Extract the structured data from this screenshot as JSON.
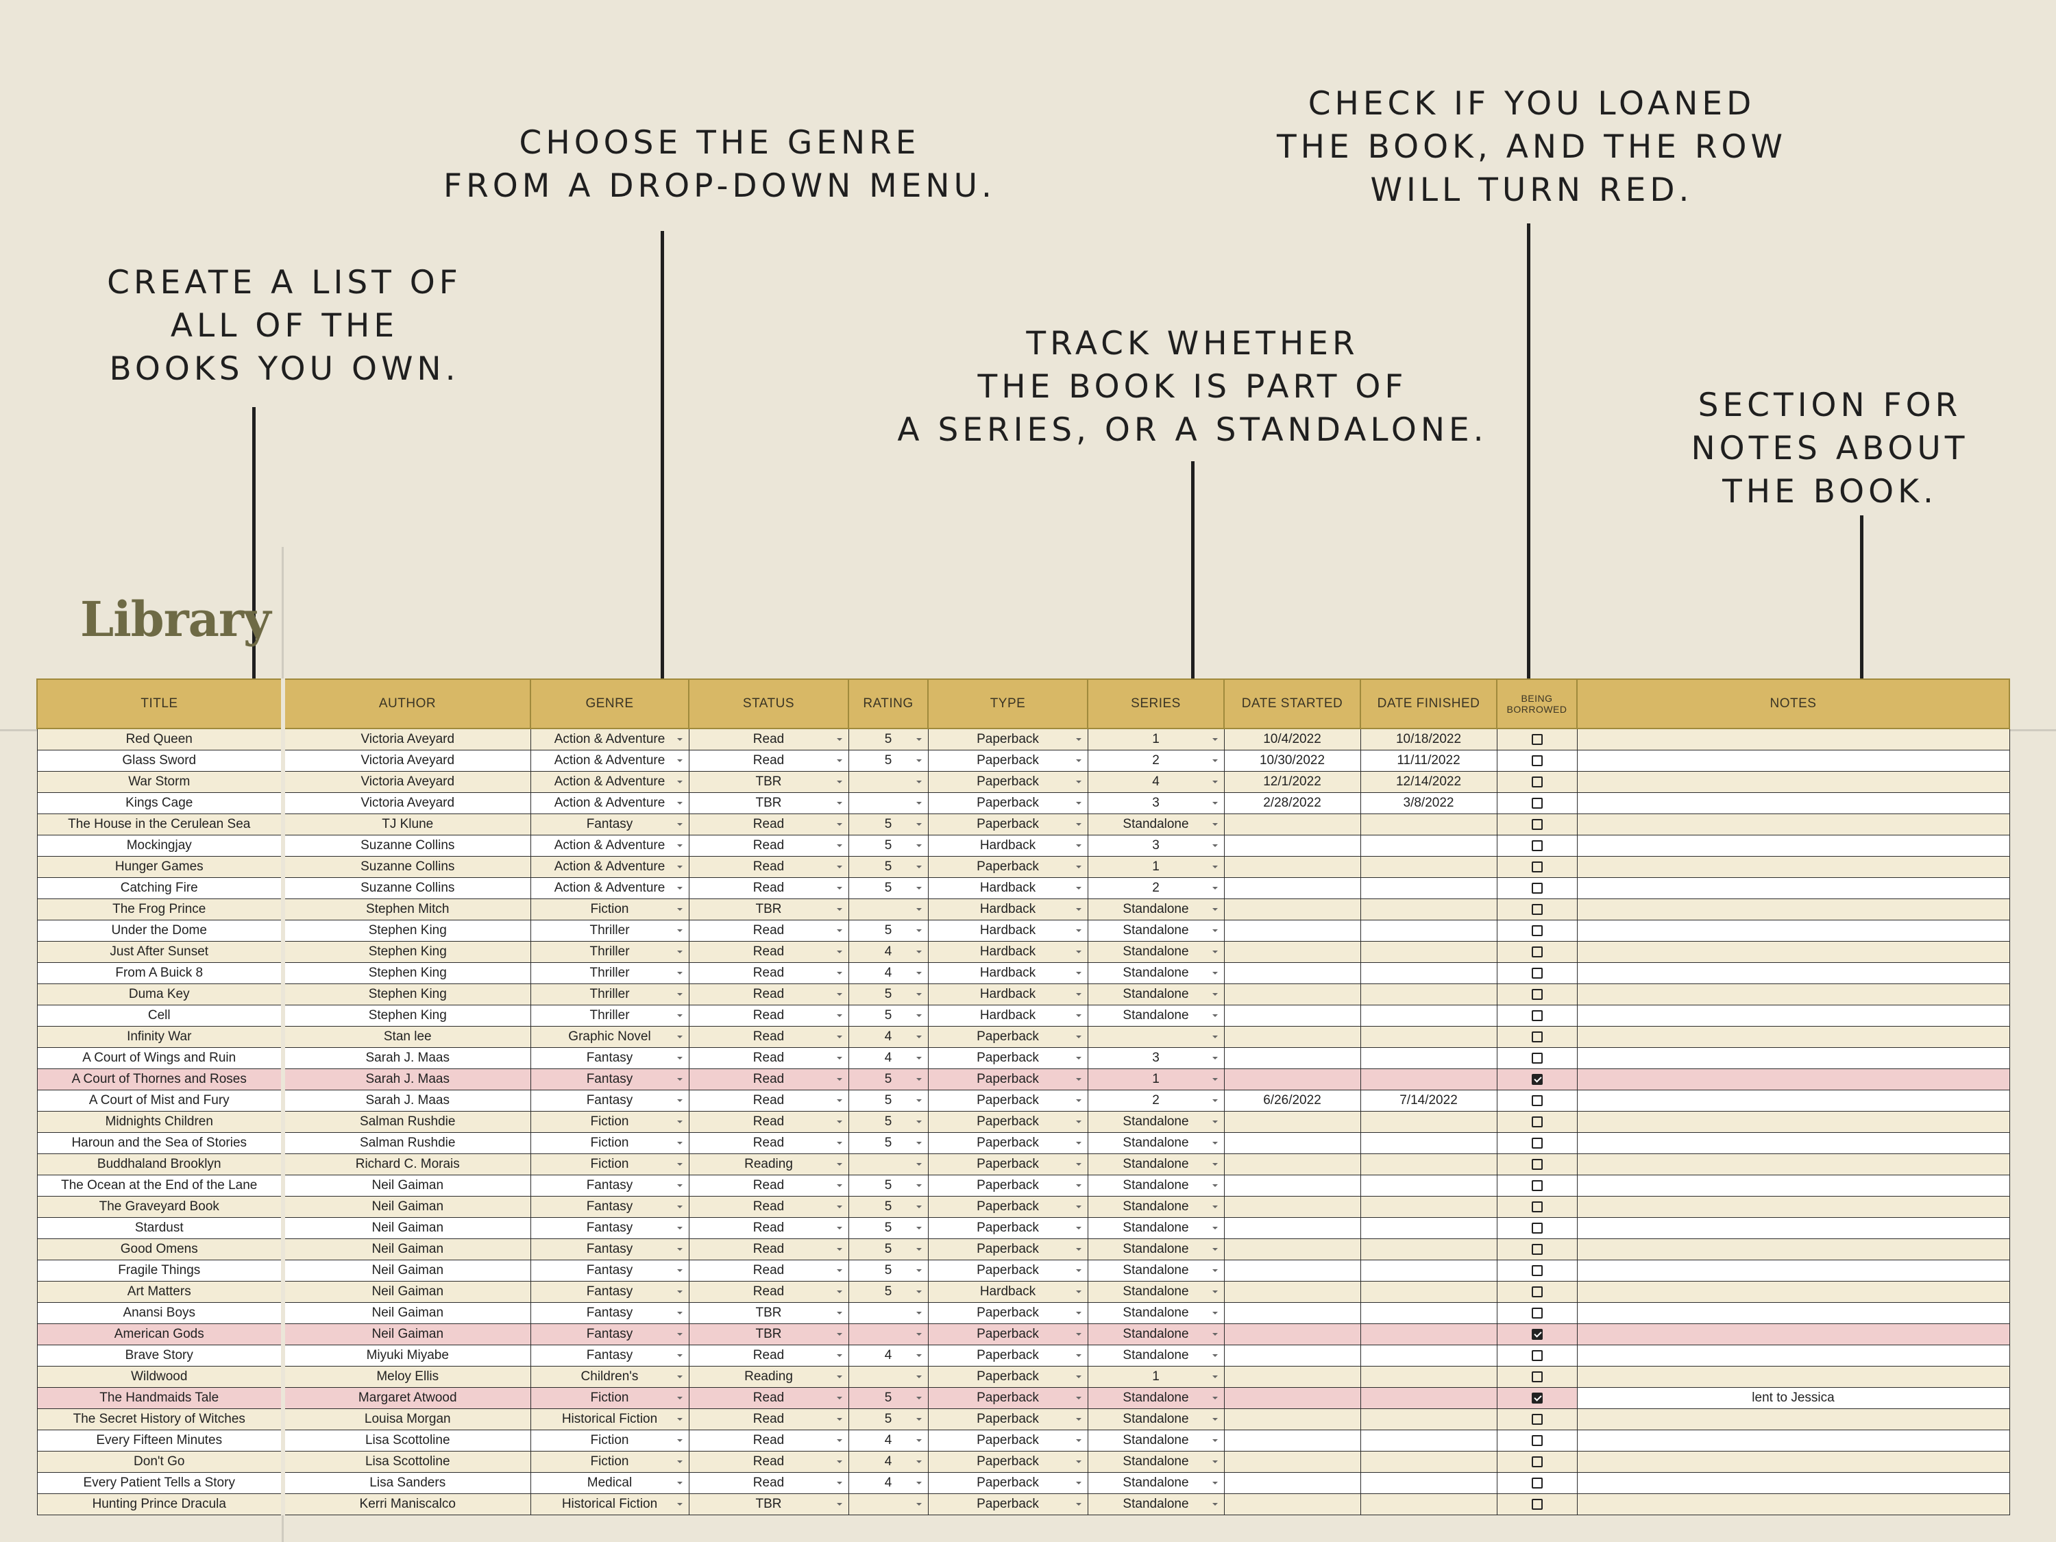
{
  "callouts": {
    "own": [
      "CREATE A LIST OF",
      "ALL OF THE",
      "BOOKS YOU OWN."
    ],
    "genre": [
      "CHOOSE THE GENRE",
      "FROM A DROP-DOWN MENU."
    ],
    "series": [
      "TRACK WHETHER",
      "THE BOOK IS PART OF",
      "A SERIES, OR A STANDALONE."
    ],
    "loaned": [
      "CHECK IF YOU LOANED",
      "THE BOOK, AND THE ROW",
      "WILL TURN RED."
    ],
    "notes": [
      "SECTION FOR",
      "NOTES ABOUT",
      "THE BOOK."
    ]
  },
  "sheet_title": "Library",
  "columns": {
    "title": "TITLE",
    "author": "AUTHOR",
    "genre": "GENRE",
    "status": "STATUS",
    "rating": "RATING",
    "type": "TYPE",
    "series": "SERIES",
    "date_started": "DATE STARTED",
    "date_finished": "DATE FINISHED",
    "borrowed_1": "BEING",
    "borrowed_2": "BORROWED",
    "notes": "NOTES"
  },
  "books": [
    {
      "title": "Red Queen",
      "author": "Victoria Aveyard",
      "genre": "Action & Adventure",
      "status": "Read",
      "rating": "5",
      "type": "Paperback",
      "series": "1",
      "started": "10/4/2022",
      "finished": "10/18/2022",
      "borrowed": false,
      "notes": ""
    },
    {
      "title": "Glass Sword",
      "author": "Victoria Aveyard",
      "genre": "Action & Adventure",
      "status": "Read",
      "rating": "5",
      "type": "Paperback",
      "series": "2",
      "started": "10/30/2022",
      "finished": "11/11/2022",
      "borrowed": false,
      "notes": ""
    },
    {
      "title": "War Storm",
      "author": "Victoria Aveyard",
      "genre": "Action & Adventure",
      "status": "TBR",
      "rating": "",
      "type": "Paperback",
      "series": "4",
      "started": "12/1/2022",
      "finished": "12/14/2022",
      "borrowed": false,
      "notes": ""
    },
    {
      "title": "Kings Cage",
      "author": "Victoria Aveyard",
      "genre": "Action & Adventure",
      "status": "TBR",
      "rating": "",
      "type": "Paperback",
      "series": "3",
      "started": "2/28/2022",
      "finished": "3/8/2022",
      "borrowed": false,
      "notes": ""
    },
    {
      "title": "The House in the Cerulean Sea",
      "author": "TJ Klune",
      "genre": "Fantasy",
      "status": "Read",
      "rating": "5",
      "type": "Paperback",
      "series": "Standalone",
      "started": "",
      "finished": "",
      "borrowed": false,
      "notes": ""
    },
    {
      "title": "Mockingjay",
      "author": "Suzanne Collins",
      "genre": "Action & Adventure",
      "status": "Read",
      "rating": "5",
      "type": "Hardback",
      "series": "3",
      "started": "",
      "finished": "",
      "borrowed": false,
      "notes": ""
    },
    {
      "title": "Hunger Games",
      "author": "Suzanne Collins",
      "genre": "Action & Adventure",
      "status": "Read",
      "rating": "5",
      "type": "Paperback",
      "series": "1",
      "started": "",
      "finished": "",
      "borrowed": false,
      "notes": ""
    },
    {
      "title": "Catching Fire",
      "author": "Suzanne Collins",
      "genre": "Action & Adventure",
      "status": "Read",
      "rating": "5",
      "type": "Hardback",
      "series": "2",
      "started": "",
      "finished": "",
      "borrowed": false,
      "notes": ""
    },
    {
      "title": "The Frog Prince",
      "author": "Stephen Mitch",
      "genre": "Fiction",
      "status": "TBR",
      "rating": "",
      "type": "Hardback",
      "series": "Standalone",
      "started": "",
      "finished": "",
      "borrowed": false,
      "notes": ""
    },
    {
      "title": "Under the Dome",
      "author": "Stephen King",
      "genre": "Thriller",
      "status": "Read",
      "rating": "5",
      "type": "Hardback",
      "series": "Standalone",
      "started": "",
      "finished": "",
      "borrowed": false,
      "notes": ""
    },
    {
      "title": "Just After Sunset",
      "author": "Stephen King",
      "genre": "Thriller",
      "status": "Read",
      "rating": "4",
      "type": "Hardback",
      "series": "Standalone",
      "started": "",
      "finished": "",
      "borrowed": false,
      "notes": ""
    },
    {
      "title": "From A Buick 8",
      "author": "Stephen King",
      "genre": "Thriller",
      "status": "Read",
      "rating": "4",
      "type": "Hardback",
      "series": "Standalone",
      "started": "",
      "finished": "",
      "borrowed": false,
      "notes": ""
    },
    {
      "title": "Duma Key",
      "author": "Stephen King",
      "genre": "Thriller",
      "status": "Read",
      "rating": "5",
      "type": "Hardback",
      "series": "Standalone",
      "started": "",
      "finished": "",
      "borrowed": false,
      "notes": ""
    },
    {
      "title": "Cell",
      "author": "Stephen King",
      "genre": "Thriller",
      "status": "Read",
      "rating": "5",
      "type": "Hardback",
      "series": "Standalone",
      "started": "",
      "finished": "",
      "borrowed": false,
      "notes": ""
    },
    {
      "title": "Infinity War",
      "author": "Stan lee",
      "genre": "Graphic Novel",
      "status": "Read",
      "rating": "4",
      "type": "Paperback",
      "series": "",
      "started": "",
      "finished": "",
      "borrowed": false,
      "notes": ""
    },
    {
      "title": "A Court of Wings and Ruin",
      "author": "Sarah J. Maas",
      "genre": "Fantasy",
      "status": "Read",
      "rating": "4",
      "type": "Paperback",
      "series": "3",
      "started": "",
      "finished": "",
      "borrowed": false,
      "notes": ""
    },
    {
      "title": "A Court of Thornes and Roses",
      "author": "Sarah J. Maas",
      "genre": "Fantasy",
      "status": "Read",
      "rating": "5",
      "type": "Paperback",
      "series": "1",
      "started": "",
      "finished": "",
      "borrowed": true,
      "notes": ""
    },
    {
      "title": "A Court of Mist and Fury",
      "author": "Sarah J. Maas",
      "genre": "Fantasy",
      "status": "Read",
      "rating": "5",
      "type": "Paperback",
      "series": "2",
      "started": "6/26/2022",
      "finished": "7/14/2022",
      "borrowed": false,
      "notes": ""
    },
    {
      "title": "Midnights Children",
      "author": "Salman Rushdie",
      "genre": "Fiction",
      "status": "Read",
      "rating": "5",
      "type": "Paperback",
      "series": "Standalone",
      "started": "",
      "finished": "",
      "borrowed": false,
      "notes": ""
    },
    {
      "title": "Haroun and the Sea of Stories",
      "author": "Salman Rushdie",
      "genre": "Fiction",
      "status": "Read",
      "rating": "5",
      "type": "Paperback",
      "series": "Standalone",
      "started": "",
      "finished": "",
      "borrowed": false,
      "notes": ""
    },
    {
      "title": "Buddhaland Brooklyn",
      "author": "Richard C. Morais",
      "genre": "Fiction",
      "status": "Reading",
      "rating": "",
      "type": "Paperback",
      "series": "Standalone",
      "started": "",
      "finished": "",
      "borrowed": false,
      "notes": ""
    },
    {
      "title": "The Ocean at the End of the Lane",
      "author": "Neil Gaiman",
      "genre": "Fantasy",
      "status": "Read",
      "rating": "5",
      "type": "Paperback",
      "series": "Standalone",
      "started": "",
      "finished": "",
      "borrowed": false,
      "notes": ""
    },
    {
      "title": "The Graveyard Book",
      "author": "Neil Gaiman",
      "genre": "Fantasy",
      "status": "Read",
      "rating": "5",
      "type": "Paperback",
      "series": "Standalone",
      "started": "",
      "finished": "",
      "borrowed": false,
      "notes": ""
    },
    {
      "title": "Stardust",
      "author": "Neil Gaiman",
      "genre": "Fantasy",
      "status": "Read",
      "rating": "5",
      "type": "Paperback",
      "series": "Standalone",
      "started": "",
      "finished": "",
      "borrowed": false,
      "notes": ""
    },
    {
      "title": "Good Omens",
      "author": "Neil Gaiman",
      "genre": "Fantasy",
      "status": "Read",
      "rating": "5",
      "type": "Paperback",
      "series": "Standalone",
      "started": "",
      "finished": "",
      "borrowed": false,
      "notes": ""
    },
    {
      "title": "Fragile Things",
      "author": "Neil Gaiman",
      "genre": "Fantasy",
      "status": "Read",
      "rating": "5",
      "type": "Paperback",
      "series": "Standalone",
      "started": "",
      "finished": "",
      "borrowed": false,
      "notes": ""
    },
    {
      "title": "Art Matters",
      "author": "Neil Gaiman",
      "genre": "Fantasy",
      "status": "Read",
      "rating": "5",
      "type": "Hardback",
      "series": "Standalone",
      "started": "",
      "finished": "",
      "borrowed": false,
      "notes": ""
    },
    {
      "title": "Anansi Boys",
      "author": "Neil Gaiman",
      "genre": "Fantasy",
      "status": "TBR",
      "rating": "",
      "type": "Paperback",
      "series": "Standalone",
      "started": "",
      "finished": "",
      "borrowed": false,
      "notes": ""
    },
    {
      "title": "American Gods",
      "author": "Neil Gaiman",
      "genre": "Fantasy",
      "status": "TBR",
      "rating": "",
      "type": "Paperback",
      "series": "Standalone",
      "started": "",
      "finished": "",
      "borrowed": true,
      "notes": ""
    },
    {
      "title": "Brave Story",
      "author": "Miyuki Miyabe",
      "genre": "Fantasy",
      "status": "Read",
      "rating": "4",
      "type": "Paperback",
      "series": "Standalone",
      "started": "",
      "finished": "",
      "borrowed": false,
      "notes": ""
    },
    {
      "title": "Wildwood",
      "author": "Meloy Ellis",
      "genre": "Children's",
      "status": "Reading",
      "rating": "",
      "type": "Paperback",
      "series": "1",
      "started": "",
      "finished": "",
      "borrowed": false,
      "notes": ""
    },
    {
      "title": "The Handmaids Tale",
      "author": "Margaret Atwood",
      "genre": "Fiction",
      "status": "Read",
      "rating": "5",
      "type": "Paperback",
      "series": "Standalone",
      "started": "",
      "finished": "",
      "borrowed": true,
      "notes": "lent to Jessica"
    },
    {
      "title": "The Secret History of Witches",
      "author": "Louisa Morgan",
      "genre": "Historical Fiction",
      "status": "Read",
      "rating": "5",
      "type": "Paperback",
      "series": "Standalone",
      "started": "",
      "finished": "",
      "borrowed": false,
      "notes": ""
    },
    {
      "title": "Every Fifteen Minutes",
      "author": "Lisa Scottoline",
      "genre": "Fiction",
      "status": "Read",
      "rating": "4",
      "type": "Paperback",
      "series": "Standalone",
      "started": "",
      "finished": "",
      "borrowed": false,
      "notes": ""
    },
    {
      "title": "Don't Go",
      "author": "Lisa Scottoline",
      "genre": "Fiction",
      "status": "Read",
      "rating": "4",
      "type": "Paperback",
      "series": "Standalone",
      "started": "",
      "finished": "",
      "borrowed": false,
      "notes": ""
    },
    {
      "title": "Every Patient Tells a Story",
      "author": "Lisa Sanders",
      "genre": "Medical",
      "status": "Read",
      "rating": "4",
      "type": "Paperback",
      "series": "Standalone",
      "started": "",
      "finished": "",
      "borrowed": false,
      "notes": ""
    },
    {
      "title": "Hunting Prince Dracula",
      "author": "Kerri Maniscalco",
      "genre": "Historical Fiction",
      "status": "TBR",
      "rating": "",
      "type": "Paperback",
      "series": "Standalone",
      "started": "",
      "finished": "",
      "borrowed": false,
      "notes": ""
    }
  ]
}
